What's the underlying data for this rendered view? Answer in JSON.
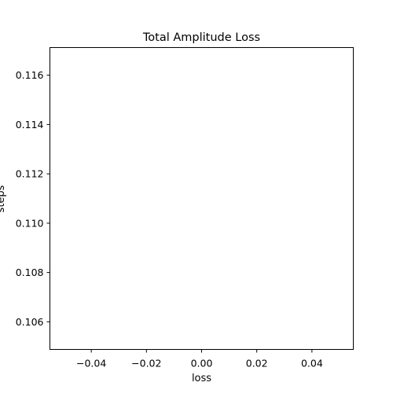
{
  "chart_data": {
    "type": "line",
    "title": "Total Amplitude Loss",
    "xlabel": "loss",
    "ylabel": "steps",
    "xlim": [
      -0.055,
      0.055
    ],
    "ylim": [
      0.10488,
      0.11712
    ],
    "x_ticks": [
      -0.04,
      -0.02,
      0.0,
      0.02,
      0.04
    ],
    "x_tick_labels": [
      "−0.04",
      "−0.02",
      "0.00",
      "0.02",
      "0.04"
    ],
    "y_ticks": [
      0.106,
      0.108,
      0.11,
      0.112,
      0.114,
      0.116
    ],
    "y_tick_labels": [
      "0.106",
      "0.108",
      "0.110",
      "0.112",
      "0.114",
      "0.116"
    ],
    "grid": false,
    "series": []
  }
}
